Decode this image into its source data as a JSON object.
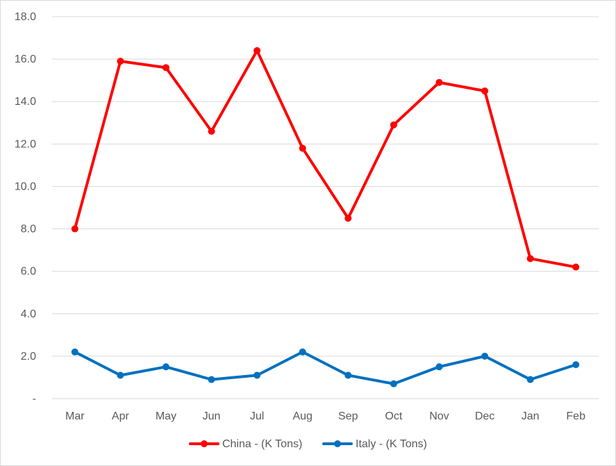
{
  "chart_data": {
    "type": "line",
    "title": "",
    "xlabel": "",
    "ylabel": "",
    "categories": [
      "Mar",
      "Apr",
      "May",
      "Jun",
      "Jul",
      "Aug",
      "Sep",
      "Oct",
      "Nov",
      "Dec",
      "Jan",
      "Feb"
    ],
    "y_ticks": [
      "-",
      "2.0",
      "4.0",
      "6.0",
      "8.0",
      "10.0",
      "12.0",
      "14.0",
      "16.0",
      "18.0"
    ],
    "ylim": [
      0,
      18
    ],
    "grid": true,
    "legend_position": "bottom",
    "series": [
      {
        "name": "China - (K Tons)",
        "color": "#ff0000",
        "values": [
          8.0,
          15.9,
          15.6,
          12.6,
          16.4,
          11.8,
          8.5,
          12.9,
          14.9,
          14.5,
          6.6,
          6.2
        ]
      },
      {
        "name": "Italy - (K Tons)",
        "color": "#0070c0",
        "values": [
          2.2,
          1.1,
          1.5,
          0.9,
          1.1,
          2.2,
          1.1,
          0.7,
          1.5,
          2.0,
          0.9,
          1.6
        ]
      }
    ]
  }
}
